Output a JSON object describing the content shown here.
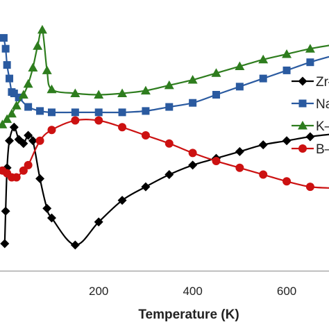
{
  "chart_data": {
    "type": "line",
    "xlabel": "Temperature (K)",
    "ylabel": "",
    "xlim": [
      -10,
      690
    ],
    "ylim": [
      0,
      10
    ],
    "xticks": [
      200,
      400,
      600
    ],
    "grid": false,
    "legend_position": "right",
    "series": [
      {
        "name": "Zr",
        "color": "#000000",
        "marker": "diamond",
        "points": [
          [
            0,
            1.0
          ],
          [
            2,
            2.2
          ],
          [
            5,
            3.8
          ],
          [
            10,
            4.8
          ],
          [
            20,
            5.3
          ],
          [
            30,
            4.85
          ],
          [
            40,
            4.7
          ],
          [
            50,
            5.0
          ],
          [
            60,
            4.8
          ],
          [
            75,
            3.4
          ],
          [
            90,
            2.3
          ],
          [
            100,
            1.95
          ],
          [
            150,
            0.95
          ],
          [
            200,
            1.8
          ],
          [
            250,
            2.6
          ],
          [
            300,
            3.1
          ],
          [
            350,
            3.55
          ],
          [
            400,
            3.9
          ],
          [
            450,
            4.15
          ],
          [
            500,
            4.4
          ],
          [
            550,
            4.65
          ],
          [
            600,
            4.8
          ],
          [
            650,
            4.95
          ],
          [
            700,
            5.05
          ]
        ]
      },
      {
        "name": "Na",
        "color": "#2a5aa0",
        "marker": "square",
        "points": [
          [
            -2,
            8.6
          ],
          [
            2,
            8.2
          ],
          [
            5,
            7.6
          ],
          [
            10,
            7.1
          ],
          [
            15,
            6.6
          ],
          [
            20,
            6.55
          ],
          [
            30,
            6.4
          ],
          [
            50,
            6.05
          ],
          [
            75,
            5.9
          ],
          [
            100,
            5.85
          ],
          [
            150,
            5.85
          ],
          [
            200,
            5.85
          ],
          [
            250,
            5.85
          ],
          [
            300,
            5.9
          ],
          [
            350,
            6.05
          ],
          [
            400,
            6.2
          ],
          [
            450,
            6.5
          ],
          [
            500,
            6.8
          ],
          [
            550,
            7.1
          ],
          [
            600,
            7.4
          ],
          [
            650,
            7.7
          ],
          [
            700,
            7.95
          ]
        ]
      },
      {
        "name": "K",
        "color": "#2e7d1e",
        "marker": "triangle",
        "points": [
          [
            -5,
            5.4
          ],
          [
            5,
            5.6
          ],
          [
            15,
            5.8
          ],
          [
            25,
            6.1
          ],
          [
            40,
            6.5
          ],
          [
            50,
            6.9
          ],
          [
            60,
            7.5
          ],
          [
            70,
            8.3
          ],
          [
            80,
            8.9
          ],
          [
            90,
            7.4
          ],
          [
            100,
            6.7
          ],
          [
            150,
            6.55
          ],
          [
            200,
            6.5
          ],
          [
            250,
            6.55
          ],
          [
            300,
            6.65
          ],
          [
            350,
            6.85
          ],
          [
            400,
            7.05
          ],
          [
            450,
            7.3
          ],
          [
            500,
            7.55
          ],
          [
            550,
            7.8
          ],
          [
            600,
            8.0
          ],
          [
            650,
            8.2
          ],
          [
            700,
            8.35
          ]
        ]
      },
      {
        "name": "B",
        "color": "#cc1111",
        "marker": "circle",
        "points": [
          [
            -5,
            3.7
          ],
          [
            5,
            3.6
          ],
          [
            15,
            3.45
          ],
          [
            25,
            3.45
          ],
          [
            40,
            3.7
          ],
          [
            50,
            3.9
          ],
          [
            75,
            4.8
          ],
          [
            100,
            5.2
          ],
          [
            150,
            5.55
          ],
          [
            200,
            5.55
          ],
          [
            250,
            5.3
          ],
          [
            300,
            5.0
          ],
          [
            350,
            4.7
          ],
          [
            400,
            4.35
          ],
          [
            450,
            4.05
          ],
          [
            500,
            3.8
          ],
          [
            550,
            3.55
          ],
          [
            600,
            3.3
          ],
          [
            650,
            3.1
          ],
          [
            700,
            3.05
          ]
        ]
      }
    ]
  },
  "legend": {
    "entries": [
      "Zr",
      "Na",
      "K",
      "B"
    ]
  }
}
